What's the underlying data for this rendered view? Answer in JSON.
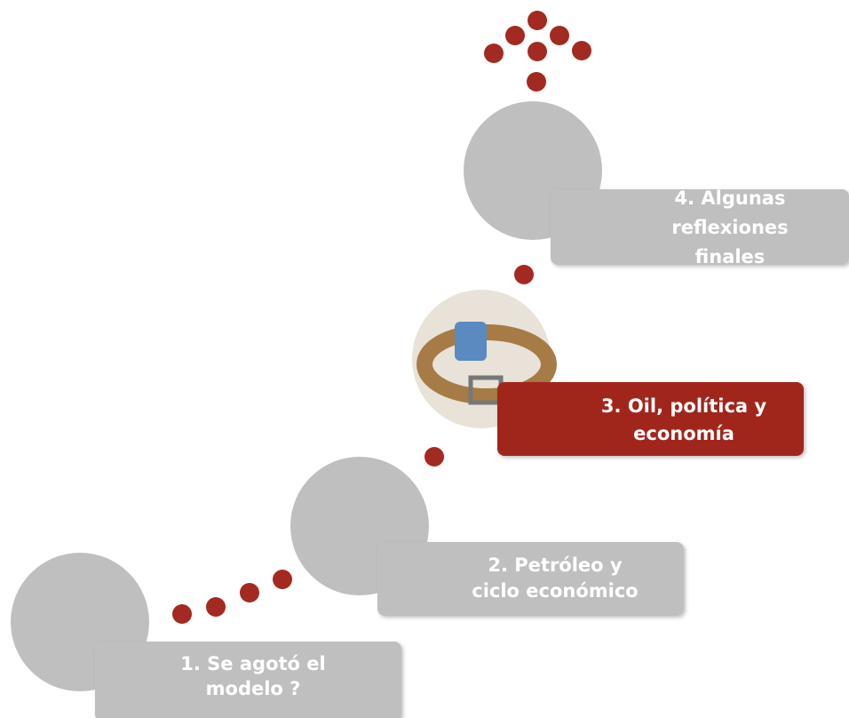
{
  "steps": [
    {
      "lines": [
        "1. Se agotó el",
        "modelo ?"
      ]
    },
    {
      "lines": [
        "2. Petróleo y",
        "ciclo económico"
      ]
    },
    {
      "lines": [
        "3. Oil, política y",
        "economía"
      ]
    },
    {
      "lines": [
        "4. Algunas",
        "reflexiones",
        "finales"
      ]
    }
  ]
}
